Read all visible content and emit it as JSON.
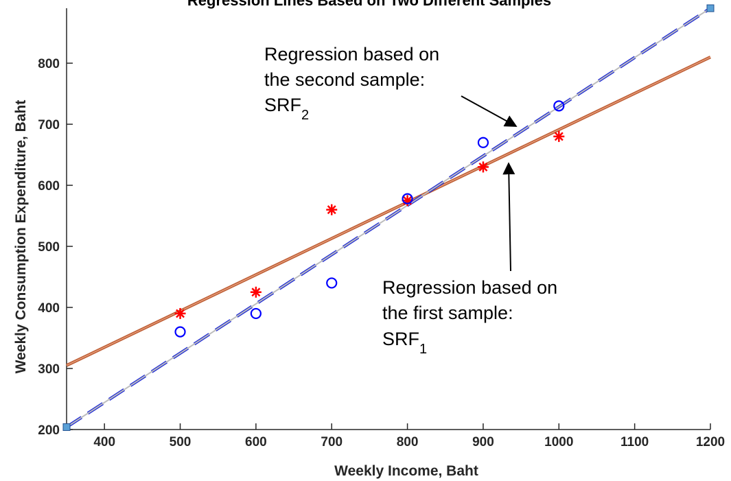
{
  "chart_data": {
    "type": "scatter",
    "title": "Regression Lines Based on Two Different Samples",
    "xlabel": "Weekly Income, Baht",
    "ylabel": "Weekly Consumption Expenditure, Baht",
    "xlim": [
      350,
      1200
    ],
    "ylim": [
      200,
      890
    ],
    "xticks": [
      400,
      500,
      600,
      700,
      800,
      900,
      1000,
      1100,
      1200
    ],
    "yticks": [
      200,
      300,
      400,
      500,
      600,
      700,
      800
    ],
    "grid": false,
    "series": [
      {
        "marker": "asterisk",
        "color": "#ff0000",
        "x": [
          500,
          600,
          700,
          800,
          900,
          1000
        ],
        "y": [
          390,
          425,
          560,
          575,
          630,
          680
        ]
      },
      {
        "marker": "circle",
        "color": "#0000ff",
        "x": [
          500,
          600,
          700,
          800,
          900,
          1000
        ],
        "y": [
          360,
          390,
          440,
          578,
          670,
          730
        ]
      }
    ],
    "lines": [
      {
        "style": "solid",
        "color": "#c0623a",
        "x": [
          350,
          1200
        ],
        "y": [
          305,
          810
        ]
      },
      {
        "style": "dashed",
        "color": "#1f2bd6",
        "x": [
          350,
          1200
        ],
        "y": [
          204,
          890
        ]
      }
    ],
    "annotations": [
      {
        "lines": [
          "Regression based on",
          "the second sample:",
          "SRF",
          "2"
        ],
        "arrow_to": [
          960,
          695
        ]
      },
      {
        "lines": [
          "Regression based on",
          "the first sample:",
          "SRF",
          "1"
        ],
        "arrow_to": [
          935,
          662
        ]
      }
    ]
  }
}
